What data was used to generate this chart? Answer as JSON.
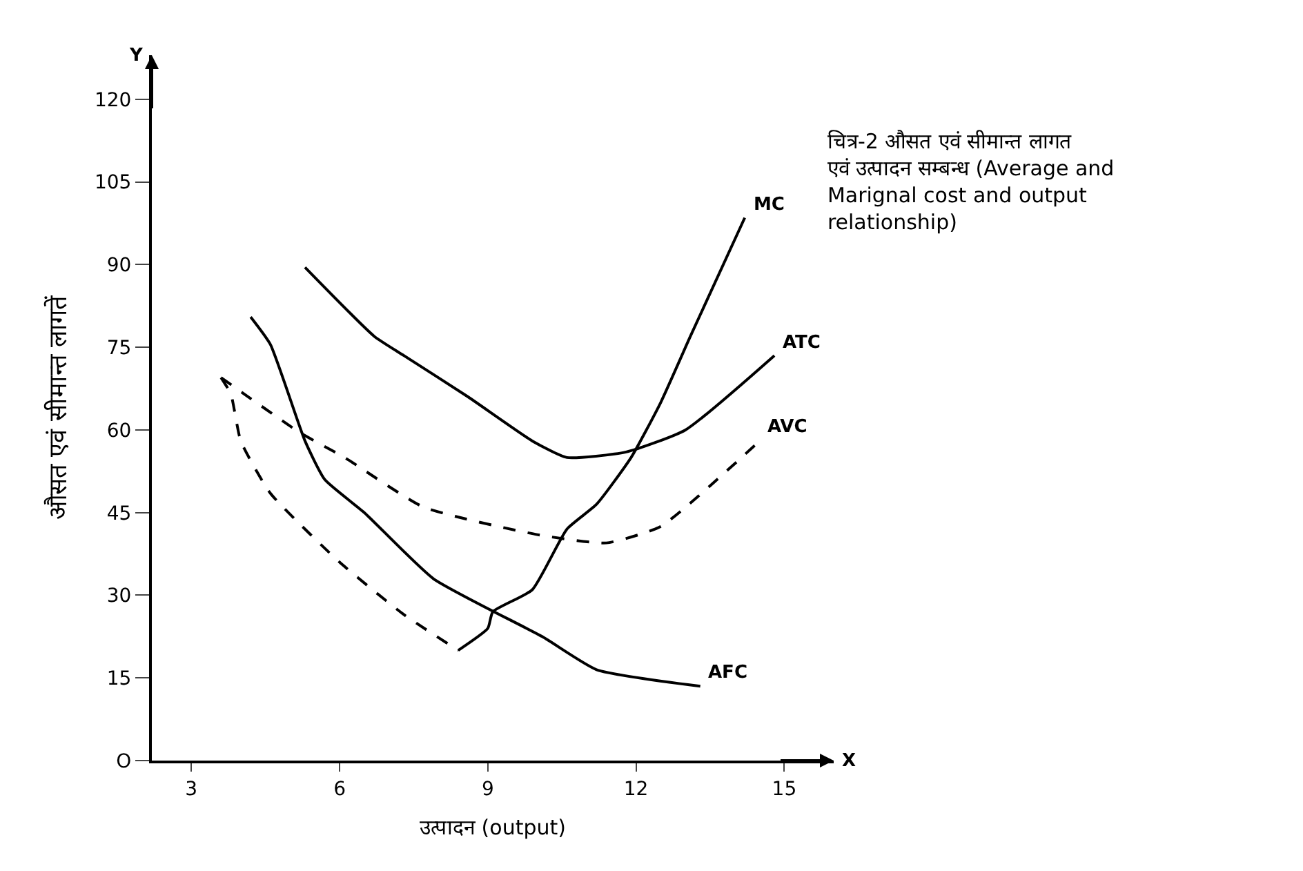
{
  "chart_data": {
    "type": "line",
    "title": "चित्र-2 औसत एवं सीमान्त लागत\nएवं उत्पादन सम्बन्ध (Average and\nMarignal cost and output\nrelationship)",
    "xlabel": "उत्पादन (output)",
    "ylabel": "औसत एवं सीमान्त लागतें",
    "xlim": [
      2.2,
      16
    ],
    "xticks": [
      3,
      6,
      9,
      12,
      15
    ],
    "ylim": [
      0,
      128
    ],
    "yticks": [
      {
        "value": 0,
        "label": "O"
      },
      15,
      30,
      45,
      60,
      75,
      90,
      105,
      120
    ],
    "annotations": [
      "Y",
      "X"
    ],
    "series": [
      {
        "name": "MC",
        "color": "#000000",
        "line_style": "solid",
        "x": [
          8.4,
          9.0,
          9.1,
          9.9,
          10.6,
          11.2,
          11.9,
          12.5,
          13.1,
          14.2
        ],
        "values": [
          20,
          24,
          27,
          31,
          42,
          46.5,
          55,
          65,
          77,
          98.5
        ]
      },
      {
        "color": "#000000",
        "line_style": "dashed",
        "x": [
          3.6,
          3.8,
          4.0,
          4.6,
          6.0,
          7.3,
          8.4
        ],
        "values": [
          69.5,
          66.5,
          58,
          48.5,
          36,
          26.5,
          20
        ]
      },
      {
        "name": "ATC",
        "color": "#000000",
        "line_style": "solid",
        "x": [
          5.3,
          6.7,
          7.3,
          8.6,
          9.9,
          10.6,
          11.8,
          13.0,
          14.8
        ],
        "values": [
          89.5,
          77,
          73.5,
          66,
          58,
          55,
          56,
          60,
          73.5
        ]
      },
      {
        "name": "AVC",
        "color": "#000000",
        "line_style": "dashed",
        "x": [
          3.6,
          5.2,
          6.1,
          7.7,
          10.0,
          11.4,
          12.5,
          14.5
        ],
        "values": [
          69.5,
          59.5,
          55,
          46,
          41,
          39.5,
          42.5,
          58
        ]
      },
      {
        "name": "AFC",
        "color": "#000000",
        "line_style": "solid",
        "x": [
          4.2,
          4.6,
          5.3,
          5.7,
          6.5,
          7.9,
          10.1,
          11.2,
          13.3
        ],
        "values": [
          80.5,
          75.5,
          58,
          51,
          45,
          33,
          22.5,
          16.5,
          13.5
        ]
      }
    ]
  }
}
